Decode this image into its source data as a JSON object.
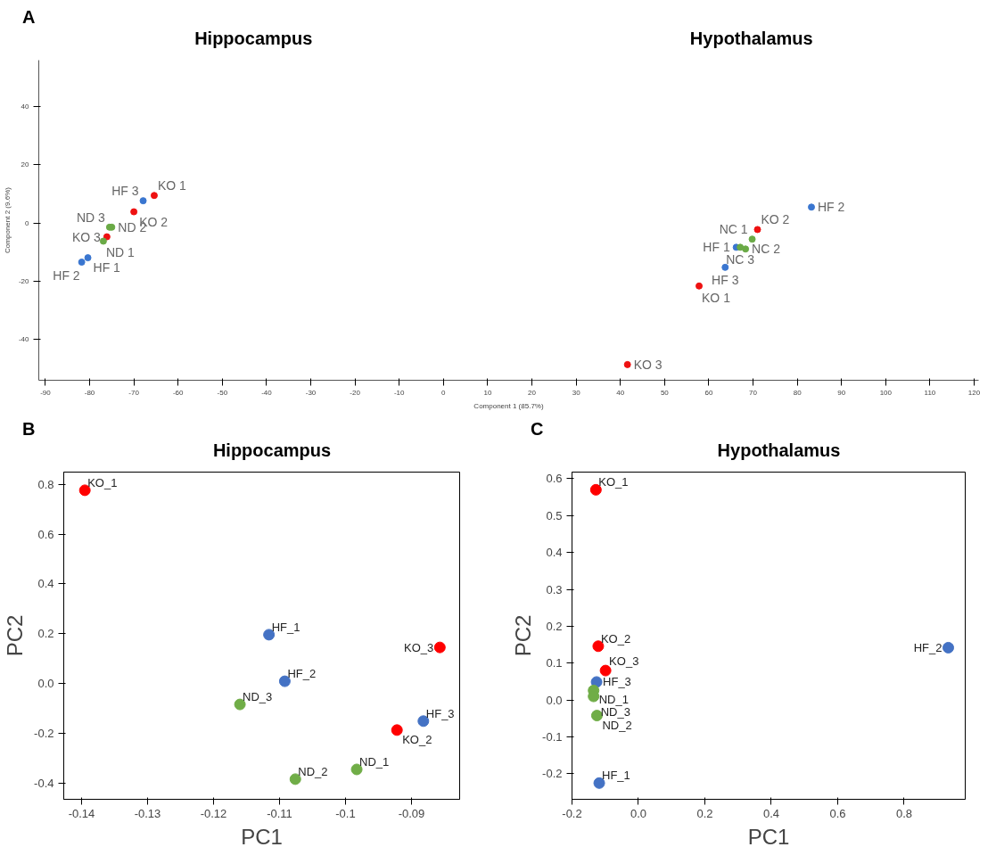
{
  "chart_data": [
    {
      "type": "scatter",
      "title": "Hippocampus",
      "xlabel": "Component 1 (85.7%)",
      "ylabel": "Component 2 (9.6%)",
      "xlim": [
        -91.5,
        121
      ],
      "ylim": [
        -54,
        56
      ],
      "xticks": [
        -90,
        -80,
        -70,
        -60,
        -50,
        -40,
        -30,
        -20,
        -10,
        0,
        10,
        20,
        30,
        40,
        50,
        60,
        70,
        80,
        90,
        100,
        110,
        120
      ],
      "yticks": [
        -40,
        -20,
        0,
        20,
        40
      ],
      "grid": false,
      "marker": "circle",
      "series": [
        {
          "color": "#ee1111",
          "x": [
            -65.4,
            -70.0,
            -76.1,
            57.8,
            71.0,
            41.6
          ],
          "values": [
            9.5,
            3.9,
            -4.7,
            -21.6,
            -2.2,
            -48.6
          ]
        },
        {
          "color": "#3a76d0",
          "x": [
            -80.4,
            -81.8,
            -67.9,
            66.2,
            83.2,
            63.7
          ],
          "values": [
            -11.9,
            -13.4,
            7.7,
            -8.3,
            5.5,
            -15.2
          ]
        },
        {
          "color": "#6aaa46",
          "x": [
            -76.9,
            -75.0,
            -75.5,
            69.8,
            68.3,
            67.1
          ],
          "values": [
            -6.2,
            -1.4,
            -1.4,
            -5.5,
            -8.9,
            -8.3
          ]
        }
      ],
      "annotations": [
        "A",
        "Hypothalamus",
        {
          "text": "KO 1",
          "x": -65.4,
          "y": 9.5
        },
        {
          "text": "KO 2",
          "x": -70.0,
          "y": 3.9
        },
        {
          "text": "KO 3",
          "x": -76.1,
          "y": -4.7
        },
        {
          "text": "KO 1",
          "x": 57.8,
          "y": -21.6
        },
        {
          "text": "KO 2",
          "x": 71.0,
          "y": -2.2
        },
        {
          "text": "KO 3",
          "x": 41.6,
          "y": -48.6
        },
        {
          "text": "HF 1",
          "x": -80.4,
          "y": -11.9
        },
        {
          "text": "HF 2",
          "x": -81.8,
          "y": -13.4
        },
        {
          "text": "HF 3",
          "x": -67.9,
          "y": 7.7
        },
        {
          "text": "HF 1",
          "x": 66.2,
          "y": -8.3
        },
        {
          "text": "HF 2",
          "x": 83.2,
          "y": 5.5
        },
        {
          "text": "HF 3",
          "x": 63.7,
          "y": -15.2
        },
        {
          "text": "ND 1",
          "x": -76.9,
          "y": -6.2
        },
        {
          "text": "ND 2",
          "x": -75.0,
          "y": -1.4
        },
        {
          "text": "ND 3",
          "x": -75.5,
          "y": -1.4
        },
        {
          "text": "NC 1",
          "x": 69.8,
          "y": -5.5
        },
        {
          "text": "NC 2",
          "x": 68.3,
          "y": -8.9
        },
        {
          "text": "NC 3",
          "x": 67.1,
          "y": -8.3
        }
      ]
    },
    {
      "type": "scatter",
      "title": "Hippocampus",
      "xlabel": "PC1",
      "ylabel": "PC2",
      "xlim": [
        -0.1427,
        -0.0827
      ],
      "ylim": [
        -0.465,
        0.849
      ],
      "xticks": [
        -0.14,
        -0.13,
        -0.12,
        -0.11,
        -0.1,
        -0.09
      ],
      "yticks": [
        -0.4,
        -0.2,
        {
          "value": 0,
          "label": "0.0"
        },
        0.2,
        0.4,
        0.6,
        0.8
      ],
      "grid": false,
      "marker": "circle",
      "series": [
        {
          "color": "#ff0000",
          "x": [
            -0.1395,
            -0.0922,
            -0.0857
          ],
          "values": [
            0.776,
            -0.187,
            0.145
          ]
        },
        {
          "color": "#4472c4",
          "x": [
            -0.1116,
            -0.1092,
            -0.0882
          ],
          "values": [
            0.196,
            0.009,
            -0.151
          ]
        },
        {
          "color": "#70ad47",
          "x": [
            -0.0983,
            -0.1076,
            -0.116
          ],
          "values": [
            -0.345,
            -0.384,
            -0.084
          ]
        }
      ],
      "annotations": [
        "B",
        {
          "text": "KO_1",
          "x": -0.1395,
          "y": 0.776
        },
        {
          "text": "KO_2",
          "x": -0.0922,
          "y": -0.187
        },
        {
          "text": "KO_3",
          "x": -0.0857,
          "y": 0.145
        },
        {
          "text": "HF_1",
          "x": -0.1116,
          "y": 0.196
        },
        {
          "text": "HF_2",
          "x": -0.1092,
          "y": 0.009
        },
        {
          "text": "HF_3",
          "x": -0.0882,
          "y": -0.151
        },
        {
          "text": "ND_1",
          "x": -0.0983,
          "y": -0.345
        },
        {
          "text": "ND_2",
          "x": -0.1076,
          "y": -0.384
        },
        {
          "text": "ND_3",
          "x": -0.116,
          "y": -0.084
        }
      ]
    },
    {
      "type": "scatter",
      "title": "Hypothalamus",
      "xlabel": "PC1",
      "ylabel": "PC2",
      "xlim": [
        -0.2,
        0.984
      ],
      "ylim": [
        -0.269,
        0.618
      ],
      "xticks": [
        -0.2,
        {
          "value": 0,
          "label": "0.0"
        },
        0.2,
        0.4,
        0.6,
        0.8
      ],
      "yticks": [
        -0.2,
        -0.1,
        {
          "value": 0,
          "label": "0.0"
        },
        0.1,
        0.2,
        0.3,
        0.4,
        0.5,
        0.6
      ],
      "grid": false,
      "marker": "circle",
      "series": [
        {
          "color": "#ff0000",
          "x": [
            -0.128,
            -0.121,
            -0.099
          ],
          "values": [
            0.57,
            0.146,
            0.08
          ]
        },
        {
          "color": "#4472c4",
          "x": [
            -0.118,
            0.933,
            -0.126
          ],
          "values": [
            -0.225,
            0.142,
            0.049
          ]
        },
        {
          "color": "#70ad47",
          "x": [
            -0.135,
            -0.125,
            -0.135
          ],
          "values": [
            0.026,
            -0.042,
            0.01
          ]
        }
      ],
      "annotations": [
        "C",
        {
          "text": "KO_1",
          "x": -0.128,
          "y": 0.57
        },
        {
          "text": "KO_2",
          "x": -0.121,
          "y": 0.146
        },
        {
          "text": "KO_3",
          "x": -0.099,
          "y": 0.08
        },
        {
          "text": "HF_1",
          "x": -0.118,
          "y": -0.225
        },
        {
          "text": "HF_2",
          "x": 0.933,
          "y": 0.142
        },
        {
          "text": "HF_3",
          "x": -0.126,
          "y": 0.049
        },
        {
          "text": "ND_1",
          "x": -0.135,
          "y": 0.026
        },
        {
          "text": "ND_2",
          "x": -0.125,
          "y": -0.042
        },
        {
          "text": "ND_3",
          "x": -0.135,
          "y": 0.01
        }
      ]
    }
  ]
}
